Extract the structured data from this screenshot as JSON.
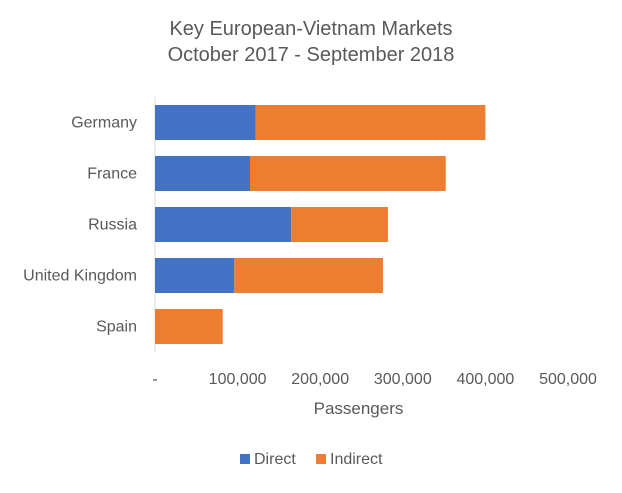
{
  "chart_data": {
    "type": "bar",
    "orientation": "horizontal",
    "stacked": true,
    "title": "Key European-Vietnam Markets",
    "subtitle": "October 2017 - September 2018",
    "xlabel": "Passengers",
    "ylabel": "",
    "xlim": [
      0,
      500000
    ],
    "x_ticks": [
      "-",
      "100,000",
      "200,000",
      "300,000",
      "400,000",
      "500,000"
    ],
    "x_tick_values": [
      0,
      100000,
      200000,
      300000,
      400000,
      500000
    ],
    "categories": [
      "Germany",
      "France",
      "Russia",
      "United Kingdom",
      "Spain"
    ],
    "series": [
      {
        "name": "Direct",
        "color": "#4472C4",
        "values": [
          122000,
          115000,
          165000,
          96000,
          0
        ]
      },
      {
        "name": "Indirect",
        "color": "#ED7D31",
        "values": [
          278000,
          237000,
          117000,
          180000,
          82000
        ]
      }
    ],
    "grid": false,
    "legend_position": "bottom"
  }
}
